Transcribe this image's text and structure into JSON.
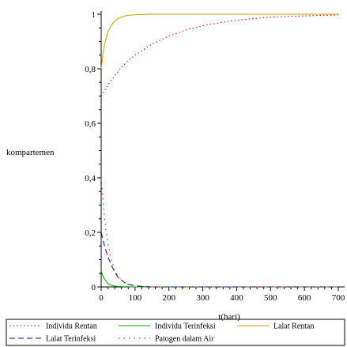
{
  "chart_data": {
    "type": "line",
    "title": "",
    "xlabel": "t(hari)",
    "ylabel": "kompartemen",
    "xlim": [
      0,
      700
    ],
    "ylim": [
      0,
      1
    ],
    "x_ticks": [
      0,
      100,
      200,
      300,
      400,
      500,
      600,
      700
    ],
    "x_tick_labels": [
      "0",
      "100",
      "200",
      "300",
      "400",
      "500",
      "600",
      "700"
    ],
    "y_ticks": [
      0,
      0.2,
      0.4,
      0.6,
      0.8,
      1
    ],
    "y_tick_labels": [
      "0",
      "0,2",
      "0,4",
      "0,6",
      "0,8",
      "1"
    ],
    "grid": false,
    "legend_position": "bottom",
    "series": [
      {
        "name": "Individu Rentan",
        "color": "#cc0000",
        "dash": "dot",
        "x": [
          0,
          10,
          25,
          50,
          75,
          100,
          150,
          200,
          250,
          300,
          350,
          400,
          450,
          500,
          550,
          600,
          650,
          700
        ],
        "y": [
          0.7,
          0.72,
          0.75,
          0.79,
          0.825,
          0.85,
          0.89,
          0.92,
          0.942,
          0.958,
          0.969,
          0.978,
          0.984,
          0.989,
          0.992,
          0.994,
          0.996,
          0.997
        ]
      },
      {
        "name": "Individu Terinfeksi",
        "color": "#00a000",
        "dash": "solid",
        "x": [
          0,
          5,
          10,
          15,
          20,
          30,
          40,
          60,
          100,
          200,
          400,
          700
        ],
        "y": [
          0.06,
          0.04,
          0.03,
          0.02,
          0.012,
          0.006,
          0.003,
          0.001,
          0,
          0,
          0,
          0
        ]
      },
      {
        "name": "Lalat Rentan",
        "color": "#c8a000",
        "dash": "solid",
        "x": [
          0,
          5,
          10,
          20,
          30,
          40,
          50,
          60,
          70,
          80,
          100,
          120,
          150,
          200,
          300,
          400,
          500,
          600,
          700
        ],
        "y": [
          0.8,
          0.85,
          0.89,
          0.935,
          0.96,
          0.975,
          0.985,
          0.99,
          0.994,
          0.996,
          0.998,
          0.999,
          1,
          1,
          1,
          1,
          1,
          1,
          1
        ]
      },
      {
        "name": "Lalat Terinfeksi",
        "color": "#000080",
        "dash": "dash",
        "x": [
          0,
          10,
          20,
          30,
          40,
          50,
          60,
          70,
          80,
          100,
          120,
          150,
          200,
          300,
          700
        ],
        "y": [
          0.2,
          0.15,
          0.11,
          0.08,
          0.055,
          0.035,
          0.025,
          0.015,
          0.01,
          0.004,
          0.002,
          0,
          0,
          0,
          0
        ]
      },
      {
        "name": "Patogen dalam Air",
        "color": "#cc0000",
        "dash": "dotsparse",
        "x": [
          0,
          5,
          10,
          15,
          20,
          25,
          30,
          40,
          50,
          60,
          70,
          80,
          100,
          120,
          150,
          200,
          300,
          700
        ],
        "y": [
          0.4,
          0.32,
          0.25,
          0.2,
          0.16,
          0.13,
          0.1,
          0.06,
          0.04,
          0.025,
          0.015,
          0.01,
          0.004,
          0.002,
          0,
          0,
          0,
          0
        ]
      }
    ]
  }
}
